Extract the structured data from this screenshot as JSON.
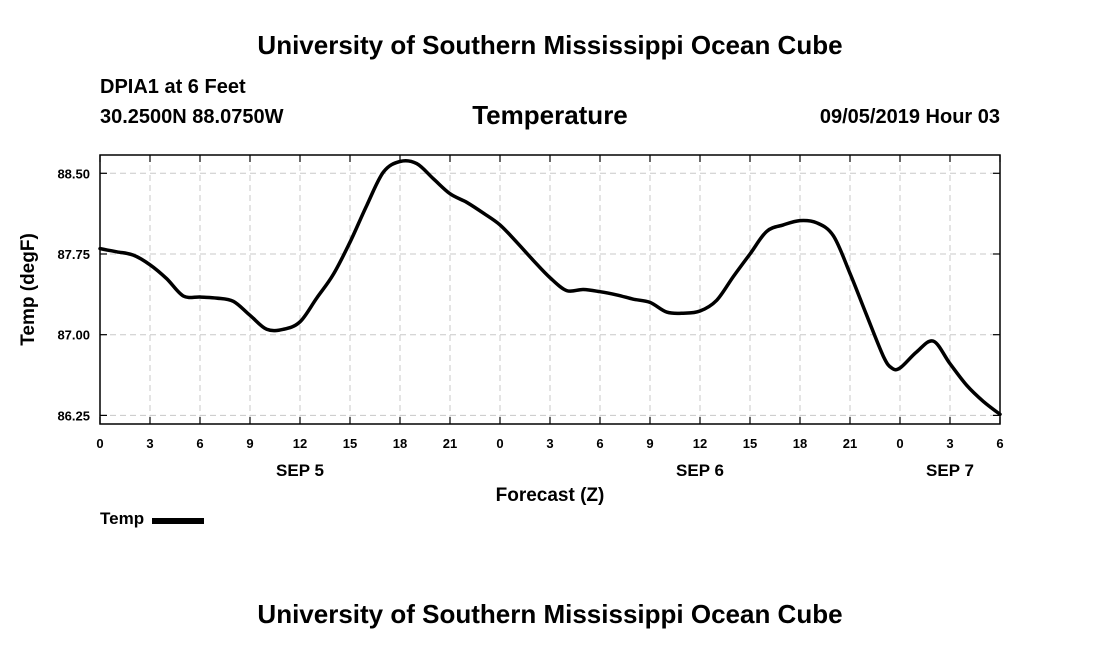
{
  "header": {
    "title": "University of Southern Mississippi Ocean Cube",
    "station": "DPIA1 at 6 Feet",
    "location": "30.2500N 88.0750W",
    "variable": "Temperature",
    "datetime": "09/05/2019 Hour 03"
  },
  "footer": {
    "title": "University of Southern Mississippi Ocean Cube"
  },
  "legend": {
    "label": "Temp",
    "color": "#000000"
  },
  "chart_data": {
    "type": "line",
    "title": "Temperature",
    "xlabel": "Forecast (Z)",
    "ylabel": "Temp (degF)",
    "xlim": [
      0,
      54
    ],
    "ylim": [
      86.17,
      88.67
    ],
    "grid": true,
    "x_unit": "hours since 2019-09-05 00Z",
    "x_ticks": [
      0,
      3,
      6,
      9,
      12,
      15,
      18,
      21,
      24,
      27,
      30,
      33,
      36,
      39,
      42,
      45,
      48,
      51,
      54
    ],
    "x_tick_labels": [
      "0",
      "3",
      "6",
      "9",
      "12",
      "15",
      "18",
      "21",
      "0",
      "3",
      "6",
      "9",
      "12",
      "15",
      "18",
      "21",
      "0",
      "3",
      "6"
    ],
    "day_labels": [
      {
        "x": 12,
        "label": "SEP 5"
      },
      {
        "x": 36,
        "label": "SEP 6"
      },
      {
        "x": 51,
        "label": "SEP 7"
      }
    ],
    "y_ticks": [
      86.25,
      87.0,
      87.75,
      88.5
    ],
    "y_tick_labels": [
      "86.25",
      "87.00",
      "87.75",
      "88.50"
    ],
    "series": [
      {
        "name": "Temp",
        "color": "#000000",
        "x": [
          0,
          1,
          2,
          3,
          4,
          5,
          6,
          7,
          8,
          9,
          10,
          11,
          12,
          13,
          14,
          15,
          16,
          17,
          18,
          19,
          20,
          21,
          22,
          23,
          24,
          25,
          26,
          27,
          28,
          29,
          30,
          31,
          32,
          33,
          34,
          35,
          36,
          37,
          38,
          39,
          40,
          41,
          42,
          43,
          44,
          45,
          46,
          47,
          47.5,
          48,
          49,
          50,
          51,
          52,
          53,
          54
        ],
        "values": [
          87.8,
          87.77,
          87.74,
          87.65,
          87.52,
          87.36,
          87.35,
          87.34,
          87.31,
          87.18,
          87.05,
          87.05,
          87.12,
          87.34,
          87.56,
          87.86,
          88.2,
          88.51,
          88.61,
          88.59,
          88.45,
          88.31,
          88.23,
          88.13,
          88.02,
          87.86,
          87.69,
          87.53,
          87.41,
          87.42,
          87.4,
          87.37,
          87.33,
          87.3,
          87.21,
          87.2,
          87.22,
          87.32,
          87.54,
          87.75,
          87.96,
          88.02,
          88.06,
          88.04,
          87.92,
          87.57,
          87.18,
          86.8,
          86.69,
          86.69,
          86.84,
          86.94,
          86.73,
          86.53,
          86.38,
          86.26
        ]
      }
    ]
  }
}
